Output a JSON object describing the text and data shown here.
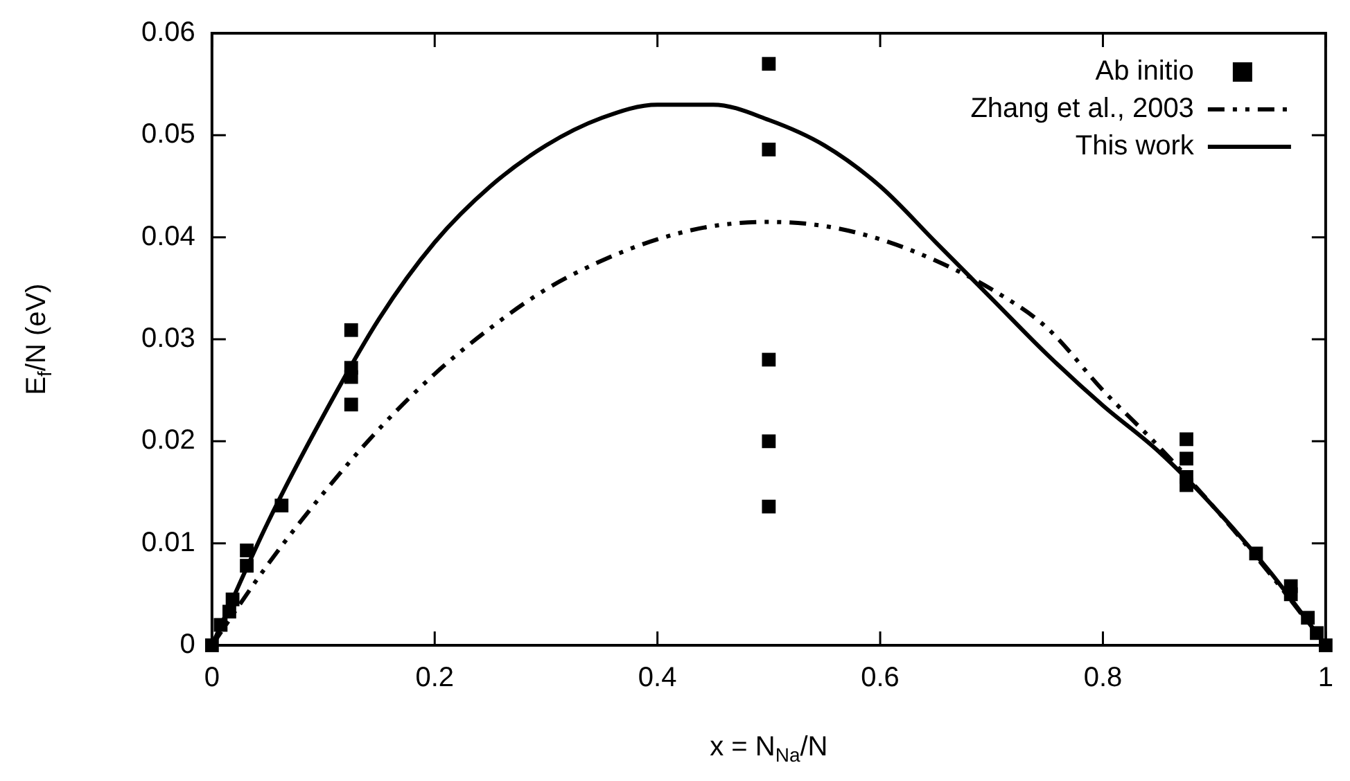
{
  "chart_data": {
    "type": "scatter",
    "xlabel": "x = N$_{Na}$/N",
    "ylabel": "E$_{f}$/N (eV)",
    "xlim": [
      0,
      1
    ],
    "xticks": [
      0,
      0.2,
      0.4,
      0.6,
      0.8,
      1
    ],
    "ylim": [
      0,
      0.06
    ],
    "yticks": [
      0,
      0.01,
      0.02,
      0.03,
      0.04,
      0.05,
      0.06
    ],
    "legend": "top right",
    "grid": false,
    "series": [
      {
        "name": "Ab initio",
        "marker": "square",
        "color": "#000000",
        "x": [
          0,
          0.0078,
          0.0156,
          0.0185,
          0.03125,
          0.03125,
          0.0625,
          0.125,
          0.125,
          0.125,
          0.125,
          0.5,
          0.5,
          0.5,
          0.5,
          0.5,
          0.875,
          0.875,
          0.875,
          0.875,
          0.9375,
          0.96875,
          0.96875,
          0.984,
          0.992,
          1
        ],
        "values": [
          0,
          0.002,
          0.0033,
          0.0045,
          0.0078,
          0.0093,
          0.0137,
          0.0309,
          0.0272,
          0.0263,
          0.0236,
          0.057,
          0.0486,
          0.028,
          0.02,
          0.0136,
          0.0202,
          0.0183,
          0.0165,
          0.0157,
          0.009,
          0.0058,
          0.005,
          0.0027,
          0.0012,
          0
        ]
      },
      {
        "name": "Zhang et al., 2003",
        "type": "line",
        "line_style": "dashed",
        "marker": "none",
        "color": "#000000",
        "x": [
          0,
          0.05,
          0.1,
          0.15,
          0.2,
          0.25,
          0.3,
          0.35,
          0.4,
          0.45,
          0.5,
          0.55,
          0.6,
          0.65,
          0.7,
          0.75,
          0.8,
          0.85,
          0.9,
          0.95,
          1
        ],
        "values": [
          0,
          0.0079,
          0.0149,
          0.0212,
          0.0266,
          0.0311,
          0.0349,
          0.0377,
          0.0398,
          0.0411,
          0.0415,
          0.0411,
          0.0398,
          0.0377,
          0.0349,
          0.0311,
          0.025,
          0.0195,
          0.0135,
          0.007,
          0
        ]
      },
      {
        "name": "This work",
        "type": "line",
        "line_style": "solid",
        "marker": "none",
        "color": "#000000",
        "x": [
          0,
          0.05,
          0.1,
          0.15,
          0.2,
          0.25,
          0.3,
          0.35,
          0.4,
          0.45,
          0.5,
          0.55,
          0.6,
          0.65,
          0.7,
          0.75,
          0.8,
          0.85,
          0.9,
          0.95,
          1
        ],
        "values": [
          0,
          0.012,
          0.0225,
          0.032,
          0.0395,
          0.045,
          0.049,
          0.0517,
          0.053,
          0.053,
          0.0515,
          0.049,
          0.045,
          0.0395,
          0.034,
          0.0285,
          0.0235,
          0.019,
          0.0135,
          0.0072,
          0
        ]
      }
    ]
  }
}
